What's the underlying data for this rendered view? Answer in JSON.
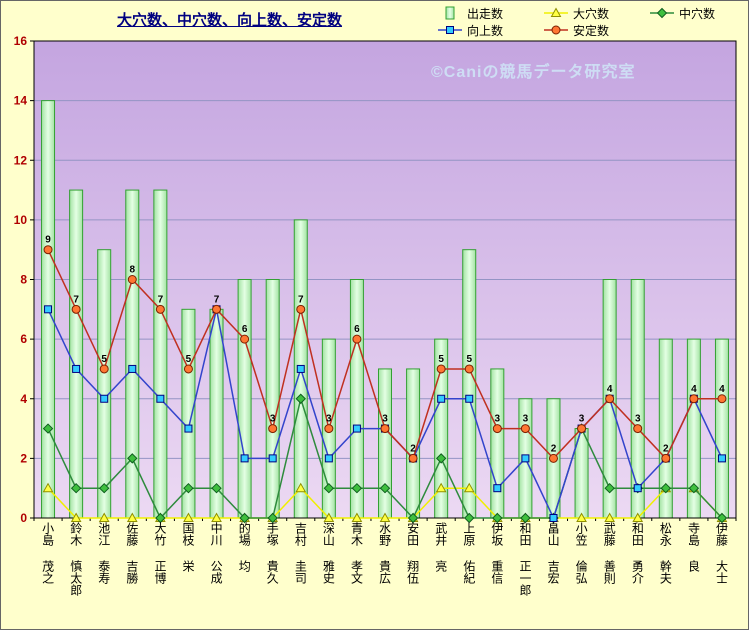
{
  "watermark": "©Caniの競馬データ研究室",
  "colors": {
    "page_bg": "#FFFFCC",
    "plot_bg_top": "#C4A5E0",
    "plot_bg_bottom": "#ECD9F3",
    "grid": "#9494C4",
    "plot_border": "#000000",
    "bar_edge": "#33A033",
    "bar_fill_edge": "#A3E3A3",
    "bar_fill_mid": "#E4FFE4",
    "axis_label": "#B00000",
    "data_label": "#000000",
    "title": "#000080",
    "watermark": "#CFE3F7"
  },
  "chart_data": {
    "type": "bar",
    "title": "大穴数、中穴数、向上数、安定数",
    "xlabel": "",
    "ylabel": "",
    "ylim": [
      0,
      16
    ],
    "ytick_step": 2,
    "yticks": [
      0,
      2,
      4,
      6,
      8,
      10,
      12,
      14,
      16
    ],
    "grid": "horizontal",
    "categories": [
      "小島 茂之",
      "鈴木 慎太郎",
      "池江 泰寿",
      "佐藤 吉勝",
      "大竹 正博",
      "国枝 栄",
      "中川 公成",
      "的場 均",
      "手塚 貴久",
      "吉村 圭司",
      "深山 雅史",
      "青木 孝文",
      "水野 貴広",
      "安田 翔伍",
      "武井 亮",
      "上原 佑紀",
      "伊坂 重信",
      "和田 正一郎",
      "畠山 吉宏",
      "小笠 倫弘",
      "武藤 善則",
      "和田 勇介",
      "松永 幹夫",
      "寺島 良",
      "伊藤 大士"
    ],
    "series": [
      {
        "name": "出走数",
        "key": "starts",
        "type": "bar",
        "values": [
          14,
          11,
          9,
          11,
          11,
          7,
          7,
          8,
          8,
          10,
          6,
          8,
          5,
          5,
          6,
          9,
          5,
          4,
          4,
          3,
          8,
          8,
          6,
          6,
          6
        ]
      },
      {
        "name": "大穴数",
        "key": "ooana",
        "type": "line",
        "marker": "triangle",
        "color": "#F0F000",
        "marker_fill": "#FFFF44",
        "marker_stroke": "#8F8F00",
        "values": [
          1,
          0,
          0,
          0,
          0,
          0,
          0,
          0,
          0,
          1,
          0,
          0,
          0,
          0,
          1,
          1,
          0,
          0,
          0,
          0,
          0,
          0,
          1,
          1,
          0
        ]
      },
      {
        "name": "中穴数",
        "key": "chuuana",
        "type": "line",
        "marker": "diamond",
        "color": "#2E8B3D",
        "marker_fill": "#3FBF3F",
        "marker_stroke": "#0F5F1F",
        "values": [
          3,
          1,
          1,
          2,
          0,
          1,
          1,
          0,
          0,
          4,
          1,
          1,
          1,
          0,
          2,
          0,
          0,
          0,
          0,
          3,
          1,
          1,
          1,
          1,
          0
        ]
      },
      {
        "name": "向上数",
        "key": "koujou",
        "type": "line",
        "marker": "square",
        "color": "#3344CC",
        "marker_fill": "#33CCFF",
        "marker_stroke": "#000080",
        "values": [
          7,
          5,
          4,
          5,
          4,
          3,
          7,
          2,
          2,
          5,
          2,
          3,
          3,
          2,
          4,
          4,
          1,
          2,
          0,
          3,
          4,
          1,
          2,
          4,
          2
        ]
      },
      {
        "name": "安定数",
        "key": "antei",
        "type": "line",
        "marker": "circle",
        "color": "#C03020",
        "marker_fill": "#FF7733",
        "marker_stroke": "#7A2000",
        "data_labels": true,
        "values": [
          9,
          7,
          5,
          8,
          7,
          5,
          7,
          6,
          3,
          7,
          3,
          6,
          3,
          2,
          5,
          5,
          3,
          3,
          2,
          3,
          4,
          3,
          2,
          4,
          4
        ]
      }
    ],
    "legend": {
      "position": "top-right",
      "rows": [
        [
          "出走数",
          "大穴数",
          "中穴数"
        ],
        [
          "向上数",
          "安定数"
        ]
      ]
    }
  }
}
